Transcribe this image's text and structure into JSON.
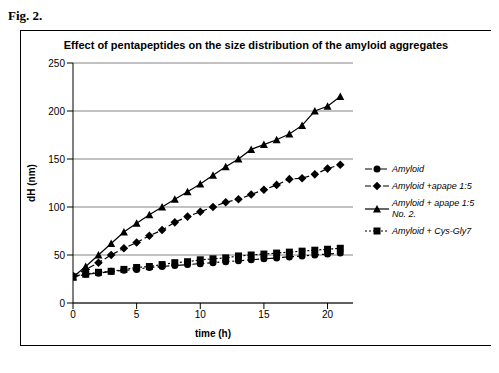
{
  "figure_label": "Fig. 2.",
  "chart_data": {
    "type": "line",
    "title": "Effect of pentapeptides on the size distribution of the amyloid aggregates",
    "x_label": "time (h)",
    "y_label": "dH (nm)",
    "x": [
      0,
      1,
      2,
      3,
      4,
      5,
      6,
      7,
      8,
      9,
      10,
      11,
      12,
      13,
      14,
      15,
      16,
      17,
      18,
      19,
      20,
      21
    ],
    "series": [
      {
        "name": "Amyloid",
        "color": "#000000",
        "marker": "circle",
        "line_style": "dashdot",
        "values": [
          28,
          30,
          31,
          33,
          34,
          35,
          37,
          38,
          39,
          40,
          41,
          42,
          43,
          44,
          45,
          46,
          47,
          48,
          49,
          50,
          51,
          52
        ]
      },
      {
        "name": "Amyloid +apape 1:5",
        "color": "#000000",
        "marker": "diamond",
        "line_style": "dashed",
        "values": [
          28,
          35,
          42,
          50,
          57,
          63,
          70,
          76,
          84,
          90,
          95,
          100,
          105,
          108,
          113,
          118,
          123,
          129,
          130,
          134,
          140,
          144
        ]
      },
      {
        "name": "Amyloid + apape 1:5 No. 2.",
        "color": "#000000",
        "marker": "triangle",
        "line_style": "solid",
        "values": [
          27,
          38,
          50,
          62,
          74,
          83,
          92,
          100,
          108,
          116,
          124,
          133,
          142,
          150,
          160,
          165,
          170,
          176,
          185,
          200,
          205,
          215
        ]
      },
      {
        "name": "Amyloid + Cys-Gly7",
        "color": "#000000",
        "marker": "square",
        "line_style": "dotted",
        "values": [
          27,
          30,
          32,
          33,
          35,
          37,
          38,
          40,
          42,
          43,
          45,
          46,
          47,
          49,
          50,
          51,
          52,
          53,
          54,
          55,
          56,
          57
        ]
      }
    ],
    "xlim": [
      0,
      22
    ],
    "xticks": [
      0,
      5,
      10,
      15,
      20
    ],
    "ylim": [
      0,
      250
    ],
    "yticks": [
      0,
      50,
      100,
      150,
      200,
      250
    ],
    "grid": true,
    "legend": "right"
  }
}
